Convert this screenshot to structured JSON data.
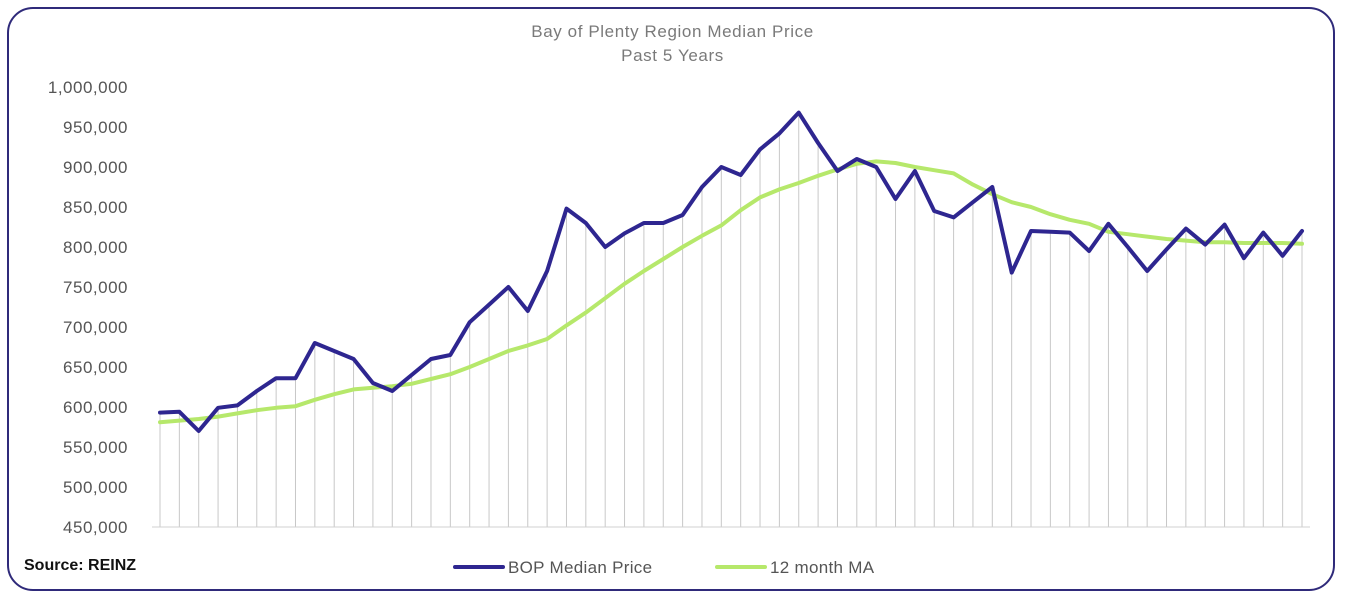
{
  "source": "Source: REINZ",
  "colors": {
    "median": "#2e2690",
    "ma": "#b6e86b",
    "frame": "#2f2a7a",
    "drop": "#c8c8c8"
  },
  "chart_data": {
    "type": "line",
    "title": "Bay of Plenty Region Median Price",
    "subtitle": "Past 5 Years",
    "xlabel": "",
    "ylabel": "",
    "ylim": [
      450000,
      1000000
    ],
    "yticks": [
      1000000,
      950000,
      900000,
      850000,
      800000,
      750000,
      700000,
      650000,
      600000,
      550000,
      500000,
      450000
    ],
    "ytick_labels": [
      "1,000,000",
      "950,000",
      "900,000",
      "850,000",
      "800,000",
      "750,000",
      "700,000",
      "650,000",
      "600,000",
      "550,000",
      "500,000",
      "450,000"
    ],
    "grid": false,
    "drop_lines": true,
    "legend_position": "bottom",
    "x": [
      1,
      2,
      3,
      4,
      5,
      6,
      7,
      8,
      9,
      10,
      11,
      12,
      13,
      14,
      15,
      16,
      17,
      18,
      19,
      20,
      21,
      22,
      23,
      24,
      25,
      26,
      27,
      28,
      29,
      30,
      31,
      32,
      33,
      34,
      35,
      36,
      37,
      38,
      39,
      40,
      41,
      42,
      43,
      44,
      45,
      46,
      47,
      48,
      49,
      50,
      51,
      52,
      53,
      54,
      55,
      56,
      57,
      58,
      59,
      60
    ],
    "series": [
      {
        "name": "BOP Median Price",
        "values": [
          593000,
          594000,
          570000,
          599000,
          602000,
          620000,
          636000,
          636000,
          680000,
          670000,
          660000,
          630000,
          620000,
          640000,
          660000,
          665000,
          706000,
          728000,
          750000,
          720000,
          770000,
          848000,
          830000,
          800000,
          817000,
          830000,
          830000,
          840000,
          875000,
          900000,
          890000,
          922000,
          942000,
          968000,
          930000,
          895000,
          910000,
          900000,
          860000,
          895000,
          845000,
          837000,
          856000,
          875000,
          768000,
          820000,
          819000,
          818000,
          795000,
          829000,
          800000,
          770000,
          797000,
          823000,
          803000,
          828000,
          786000,
          818000,
          789000,
          820000
        ]
      },
      {
        "name": "12 month MA",
        "values": [
          581000,
          583000,
          585000,
          588000,
          592000,
          596000,
          599000,
          601000,
          609000,
          616000,
          622000,
          624000,
          626000,
          629000,
          635000,
          641000,
          650000,
          660000,
          670000,
          677000,
          685000,
          702000,
          718000,
          736000,
          754000,
          770000,
          785000,
          800000,
          814000,
          827000,
          846000,
          862000,
          872000,
          880000,
          889000,
          897000,
          904000,
          907000,
          905000,
          900000,
          896000,
          892000,
          878000,
          866000,
          856000,
          850000,
          841000,
          834000,
          829000,
          819000,
          816000,
          813000,
          810000,
          808000,
          806000,
          806000,
          805000,
          805000,
          805000,
          804000
        ]
      }
    ]
  }
}
